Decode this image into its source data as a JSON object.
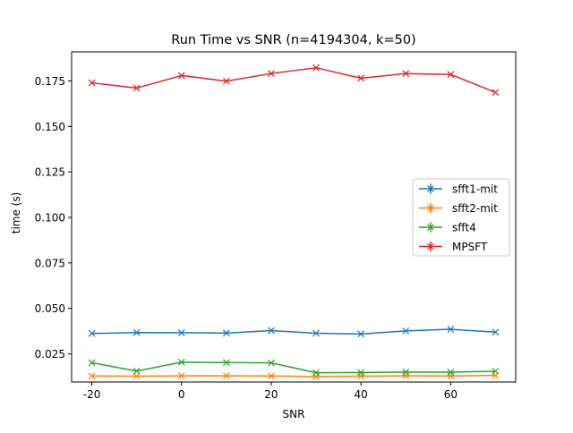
{
  "chart_data": {
    "type": "line",
    "title": "Run Time vs SNR (n=4194304, k=50)",
    "xlabel": "SNR",
    "ylabel": "time (s)",
    "x": [
      -20,
      -10,
      0,
      10,
      20,
      30,
      40,
      50,
      60,
      70
    ],
    "xlim": [
      -24.5,
      74.5
    ],
    "ylim": [
      0.0095,
      0.191
    ],
    "xticks": [
      -20,
      0,
      20,
      40,
      60
    ],
    "xtick_labels": [
      "-20",
      "0",
      "20",
      "40",
      "60"
    ],
    "yticks": [
      0.025,
      0.05,
      0.075,
      0.1,
      0.125,
      0.15,
      0.175
    ],
    "ytick_labels": [
      "0.025",
      "0.050",
      "0.075",
      "0.100",
      "0.125",
      "0.150",
      "0.175"
    ],
    "grid": false,
    "legend_position": "center-right",
    "series": [
      {
        "name": "sfft1-mit",
        "color": "#1f77b4",
        "values": [
          0.0362,
          0.0367,
          0.0366,
          0.0364,
          0.0378,
          0.0363,
          0.0359,
          0.0376,
          0.0385,
          0.0369
        ]
      },
      {
        "name": "sfft2-mit",
        "color": "#ff7f0e",
        "values": [
          0.0128,
          0.0127,
          0.0129,
          0.0129,
          0.0128,
          0.0125,
          0.0127,
          0.0129,
          0.0128,
          0.0131
        ]
      },
      {
        "name": "sfft4",
        "color": "#2ca02c",
        "values": [
          0.0201,
          0.0155,
          0.0204,
          0.0202,
          0.02,
          0.0146,
          0.0147,
          0.015,
          0.0149,
          0.0154
        ]
      },
      {
        "name": "MPSFT",
        "color": "#d62728",
        "values": [
          0.174,
          0.1711,
          0.178,
          0.1749,
          0.1791,
          0.1823,
          0.1765,
          0.1791,
          0.1786,
          0.1687
        ]
      }
    ]
  }
}
